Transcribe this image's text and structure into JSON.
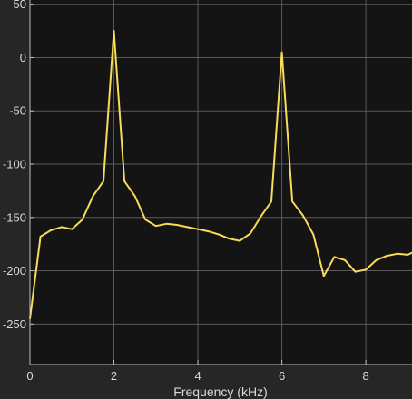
{
  "chart_data": {
    "type": "line",
    "title": "",
    "xlabel": "Frequency (kHz)",
    "ylabel": "",
    "xlim": [
      0,
      9.1
    ],
    "ylim": [
      -288,
      54
    ],
    "grid": true,
    "xticks": [
      0,
      2,
      4,
      6,
      8
    ],
    "yticks": [
      50,
      0,
      -50,
      -100,
      -150,
      -200,
      -250
    ],
    "colors": {
      "figure_bg": "#262626",
      "axes_bg": "#141414",
      "grid": "#5a5a5a",
      "axis": "#bfbfbf",
      "text": "#d9d9d9",
      "line": "#f7dc5a"
    },
    "series": [
      {
        "name": "",
        "x": [
          0,
          0.25,
          0.5,
          0.75,
          1.0,
          1.25,
          1.5,
          1.75,
          2.0,
          2.25,
          2.5,
          2.75,
          3.0,
          3.25,
          3.5,
          3.75,
          4.0,
          4.25,
          4.5,
          4.75,
          5.0,
          5.25,
          5.5,
          5.75,
          6.0,
          6.25,
          6.5,
          6.75,
          7.0,
          7.25,
          7.5,
          7.75,
          8.0,
          8.25,
          8.5,
          8.75,
          9.0,
          9.1
        ],
        "y": [
          -245,
          -168,
          -162,
          -159,
          -161,
          -152,
          -130,
          -116,
          25,
          -116,
          -130,
          -152,
          -158,
          -156,
          -157,
          -159,
          -161,
          -163,
          -166,
          -170,
          -172,
          -165,
          -149,
          -135,
          5,
          -135,
          -148,
          -166,
          -205,
          -187,
          -190,
          -201,
          -199,
          -190,
          -186,
          -184,
          -185,
          -183
        ]
      }
    ]
  }
}
